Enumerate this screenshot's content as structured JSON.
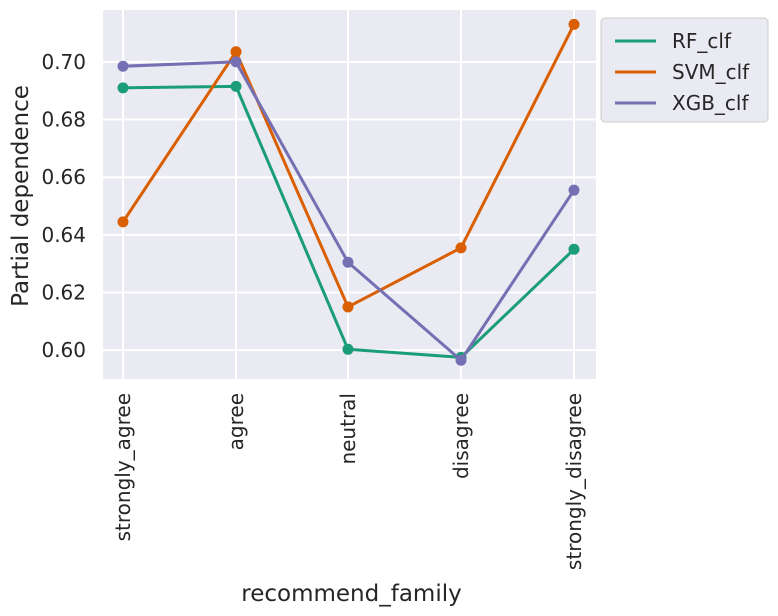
{
  "chart_data": {
    "type": "line",
    "title": "",
    "xlabel": "recommend_family",
    "ylabel": "Partial dependence",
    "categories": [
      "strongly_agree",
      "agree",
      "neutral",
      "disagree",
      "strongly_disagree"
    ],
    "ylim": [
      0.59,
      0.718
    ],
    "yticks": [
      0.6,
      0.62,
      0.64,
      0.66,
      0.68,
      0.7
    ],
    "ytick_labels": [
      "0.60",
      "0.62",
      "0.64",
      "0.66",
      "0.68",
      "0.70"
    ],
    "grid": true,
    "legend_position": "outside-top-right",
    "series": [
      {
        "name": "RF_clf",
        "color": "#1b9e77",
        "values": [
          0.691,
          0.6915,
          0.6003,
          0.5975,
          0.635
        ]
      },
      {
        "name": "SVM_clf",
        "color": "#d95f02",
        "values": [
          0.6445,
          0.7035,
          0.615,
          0.6355,
          0.713
        ]
      },
      {
        "name": "XGB_clf",
        "color": "#7570b3",
        "values": [
          0.6985,
          0.7,
          0.6305,
          0.5965,
          0.6555
        ]
      }
    ]
  },
  "colors": {
    "plot_background": "#eaeaf2",
    "grid": "#ffffff",
    "text": "#262626"
  }
}
